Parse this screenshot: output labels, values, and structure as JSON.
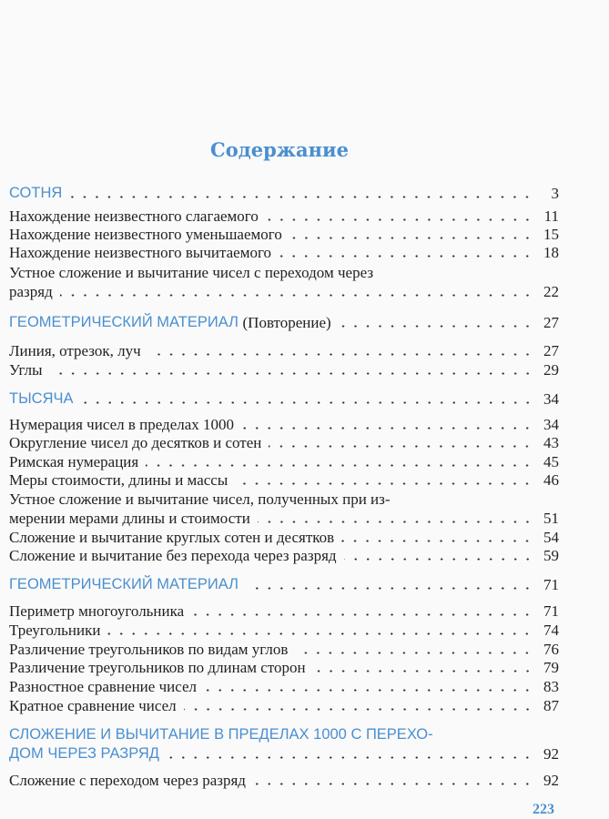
{
  "title": "Содержание",
  "toc": [
    {
      "label": "СОТНЯ",
      "page": "3"
    },
    {
      "label": "Нахождение неизвестного слагаемого",
      "page": "11"
    },
    {
      "label": "Нахождение неизвестного уменьшаемого",
      "page": "15"
    },
    {
      "label": "Нахождение неизвестного вычитаемого",
      "page": "18"
    },
    {
      "label_line1": "Устное сложение и вычитание чисел с переходом через",
      "label": "разряд",
      "page": "22"
    },
    {
      "label": "ГЕОМЕТРИЧЕСКИЙ МАТЕРИАЛ",
      "note": "(Повторение)",
      "page": "27"
    },
    {
      "label": "Линия, отрезок, луч",
      "page": "27"
    },
    {
      "label": "Углы",
      "page": "29"
    },
    {
      "label": "ТЫСЯЧА",
      "page": "34"
    },
    {
      "label": "Нумерация чисел в пределах 1000",
      "page": "34"
    },
    {
      "label": "Округление чисел до десятков и сотен",
      "page": "43"
    },
    {
      "label": "Римская нумерация",
      "page": "45"
    },
    {
      "label": "Меры стоимости, длины и массы",
      "page": "46"
    },
    {
      "label_line1": "Устное сложение и вычитание чисел, полученных при из-",
      "label": "мерении мерами длины и стоимости",
      "page": "51"
    },
    {
      "label": "Сложение и вычитание круглых сотен и десятков",
      "page": "54"
    },
    {
      "label": "Сложение и вычитание без перехода через разряд",
      "page": "59"
    },
    {
      "label": "ГЕОМЕТРИЧЕСКИЙ МАТЕРИАЛ",
      "page": "71"
    },
    {
      "label": "Периметр многоугольника",
      "page": "71"
    },
    {
      "label": "Треугольники",
      "page": "74"
    },
    {
      "label": "Различение треугольников по видам углов",
      "page": "76"
    },
    {
      "label": "Различение треугольников по длинам сторон",
      "page": "79"
    },
    {
      "label": "Разностное сравнение чисел",
      "page": "83"
    },
    {
      "label": "Кратное сравнение чисел",
      "page": "87"
    },
    {
      "label_line1": "СЛОЖЕНИЕ И ВЫЧИТАНИЕ В ПРЕДЕЛАХ 1000 С ПЕРЕХО-",
      "label": "ДОМ ЧЕРЕЗ РАЗРЯД",
      "page": "92"
    },
    {
      "label": "Сложение с переходом через разряд",
      "page": "92"
    }
  ],
  "page_number": "223",
  "colors": {
    "accent": "#4a8fd0",
    "text": "#222222"
  }
}
